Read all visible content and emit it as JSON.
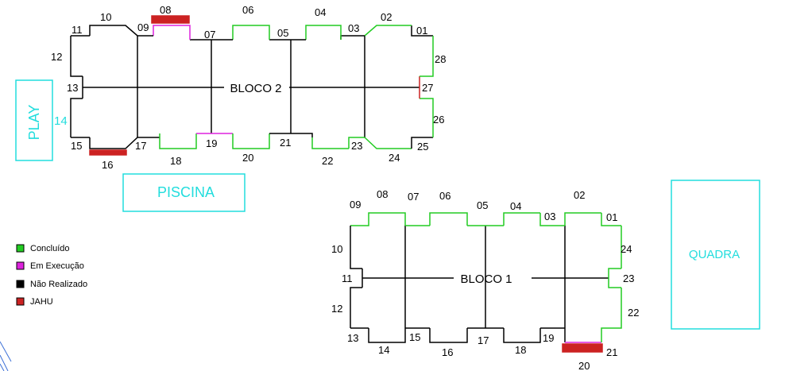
{
  "colors": {
    "concluido": "#22cc22",
    "execucao": "#dd22dd",
    "nao_realizado": "#000000",
    "jahu": "#cc2222",
    "area": "#22dddd"
  },
  "areas": {
    "play": "PLAY",
    "play_number": "14",
    "piscina": "PISCINA",
    "quadra": "QUADRA"
  },
  "legend": [
    {
      "label": "Concluído",
      "status": "concluido"
    },
    {
      "label": "Em Execução",
      "status": "execucao"
    },
    {
      "label": "Não Realizado",
      "status": "nao_realizado"
    },
    {
      "label": "JAHU",
      "status": "jahu"
    }
  ],
  "bloco2": {
    "title": "BLOCO 2",
    "segments": {
      "01": "nao_realizado",
      "02": "concluido",
      "03": "nao_realizado",
      "04": "concluido",
      "05": "nao_realizado",
      "06": "concluido",
      "07": "nao_realizado",
      "08": "jahu",
      "09": "execucao",
      "10": "nao_realizado",
      "11": "nao_realizado",
      "12": "nao_realizado",
      "13": "nao_realizado",
      "14": "nao_realizado",
      "15": "nao_realizado",
      "16": "jahu",
      "17": "nao_realizado",
      "18": "concluido",
      "19": "execucao",
      "20": "concluido",
      "21": "nao_realizado",
      "22": "concluido",
      "23": "concluido",
      "24": "concluido",
      "25": "nao_realizado",
      "26": "concluido",
      "27": "jahu",
      "28": "concluido"
    }
  },
  "bloco1": {
    "title": "BLOCO 1",
    "segments": {
      "01": "concluido",
      "02": "concluido",
      "03": "concluido",
      "04": "concluido",
      "05": "concluido",
      "06": "concluido",
      "07": "concluido",
      "08": "concluido",
      "09": "concluido",
      "10": "nao_realizado",
      "11": "nao_realizado",
      "12": "nao_realizado",
      "13": "nao_realizado",
      "14": "nao_realizado",
      "15": "nao_realizado",
      "16": "nao_realizado",
      "17": "nao_realizado",
      "18": "nao_realizado",
      "19": "nao_realizado",
      "20": "jahu",
      "21": "execucao",
      "22": "concluido",
      "23": "concluido",
      "24": "concluido"
    }
  }
}
